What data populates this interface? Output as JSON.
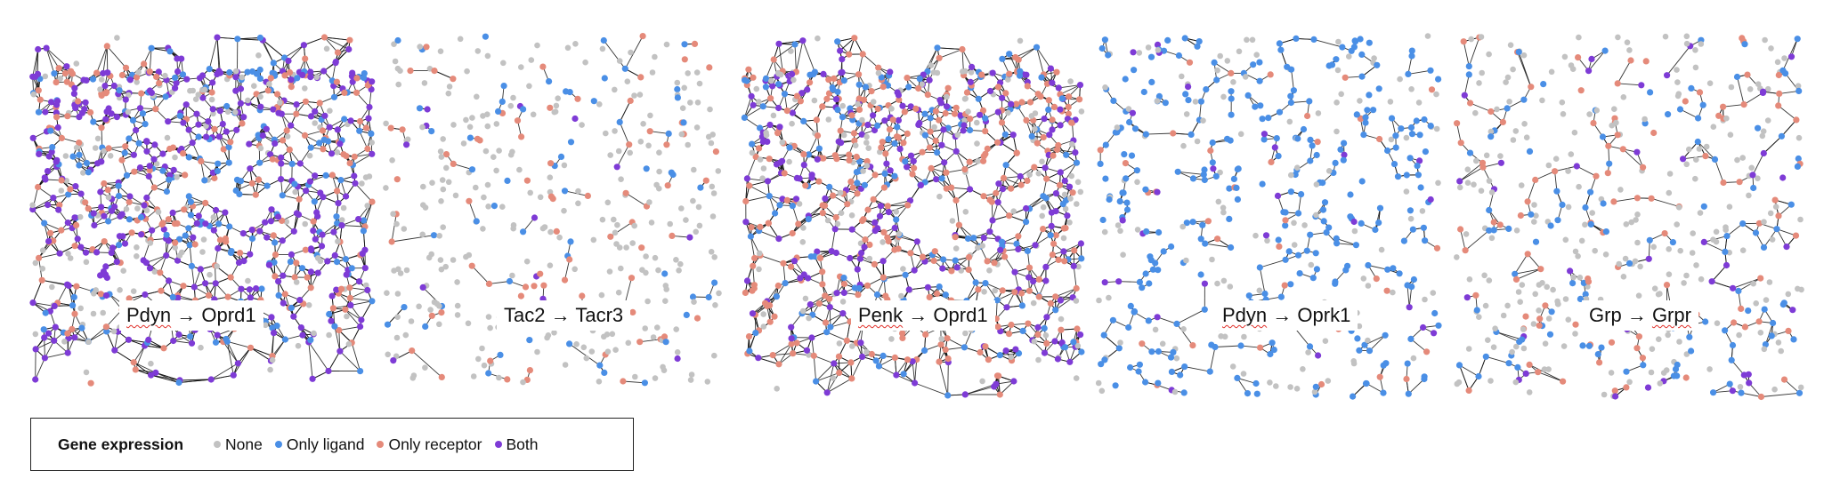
{
  "panels": [
    {
      "ligand": "Pdyn",
      "arrow": "→",
      "receptor": "Oprd1",
      "ligand_squiggle": true,
      "receptor_squiggle": false,
      "mix": {
        "none": 0.16,
        "ligand": 0.22,
        "receptor": 0.24,
        "both": 0.38
      },
      "density": "very-high"
    },
    {
      "ligand": "Tac2",
      "arrow": "→",
      "receptor": "Tacr3",
      "ligand_squiggle": false,
      "receptor_squiggle": false,
      "mix": {
        "none": 0.62,
        "ligand": 0.16,
        "receptor": 0.18,
        "both": 0.04
      },
      "density": "low"
    },
    {
      "ligand": "Penk",
      "arrow": "→",
      "receptor": "Oprd1",
      "ligand_squiggle": true,
      "receptor_squiggle": false,
      "mix": {
        "none": 0.18,
        "ligand": 0.18,
        "receptor": 0.34,
        "both": 0.3
      },
      "density": "very-high"
    },
    {
      "ligand": "Pdyn",
      "arrow": "→",
      "receptor": "Oprk1",
      "ligand_squiggle": true,
      "receptor_squiggle": false,
      "mix": {
        "none": 0.28,
        "ligand": 0.56,
        "receptor": 0.1,
        "both": 0.06
      },
      "density": "medium"
    },
    {
      "ligand": "Grp",
      "arrow": "→",
      "receptor": "Grpr",
      "ligand_squiggle": false,
      "receptor_squiggle": true,
      "mix": {
        "none": 0.52,
        "ligand": 0.22,
        "receptor": 0.18,
        "both": 0.08
      },
      "density": "medium"
    }
  ],
  "legend": {
    "title": "Gene expression",
    "items": [
      {
        "key": "none",
        "label": "None",
        "color": "#c2c2c2"
      },
      {
        "key": "ligand",
        "label": "Only ligand",
        "color": "#4a8fe6"
      },
      {
        "key": "receptor",
        "label": "Only receptor",
        "color": "#e58a7a"
      },
      {
        "key": "both",
        "label": "Both",
        "color": "#7e3bd6"
      }
    ]
  },
  "colors": {
    "edge": "#111111",
    "background": "#ffffff"
  }
}
